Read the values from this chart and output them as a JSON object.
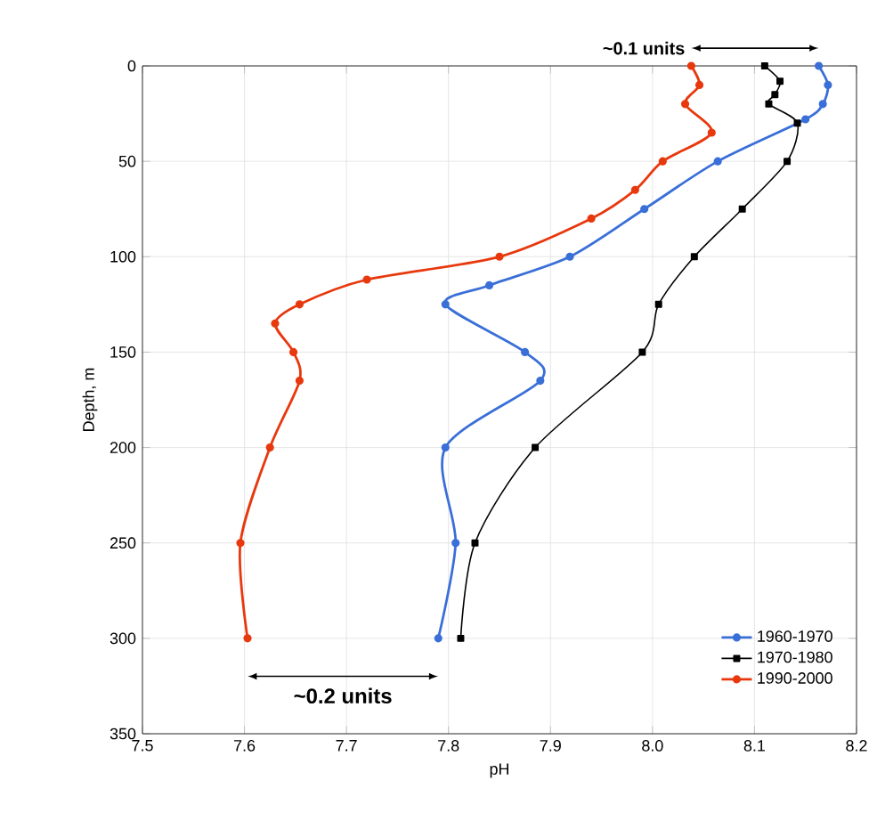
{
  "chart_data": {
    "type": "line",
    "xlabel": "pH",
    "ylabel": "Depth, m",
    "xlim": [
      7.5,
      8.2
    ],
    "xticks": [
      7.5,
      7.6,
      7.7,
      7.8,
      7.9,
      {
        "value": 8.0,
        "label": "8.0"
      },
      8.1,
      8.2
    ],
    "ylim": [
      350,
      0
    ],
    "yticks": [
      0,
      50,
      100,
      150,
      200,
      250,
      300,
      350
    ],
    "grid": true,
    "legend": "bottom right",
    "series": [
      {
        "name": "1960-1970",
        "color": "#3a6fd8",
        "marker": "circle",
        "x": [
          8.163,
          8.172,
          8.167,
          8.15,
          8.064,
          7.992,
          7.919,
          7.84,
          7.797,
          7.875,
          7.89,
          7.797,
          7.807,
          7.79
        ],
        "values": [
          0,
          10,
          20,
          28,
          50,
          75,
          100,
          115,
          125,
          150,
          165,
          200,
          250,
          300
        ]
      },
      {
        "name": "1970-1980",
        "color": "#000000",
        "marker": "square",
        "x": [
          8.11,
          8.125,
          8.12,
          8.114,
          8.142,
          8.132,
          8.088,
          8.041,
          8.006,
          7.99,
          7.885,
          7.826,
          7.812
        ],
        "values": [
          0,
          8,
          15,
          20,
          30,
          50,
          75,
          100,
          125,
          150,
          200,
          250,
          300
        ]
      },
      {
        "name": "1990-2000",
        "color": "#e8380d",
        "marker": "circle",
        "x": [
          8.038,
          8.046,
          8.032,
          8.058,
          8.01,
          7.983,
          7.94,
          7.85,
          7.72,
          7.654,
          7.63,
          7.648,
          7.654,
          7.625,
          7.596,
          7.603
        ],
        "values": [
          0,
          10,
          20,
          35,
          50,
          65,
          80,
          100,
          112,
          125,
          135,
          150,
          165,
          200,
          250,
          300
        ]
      }
    ],
    "annotations": [
      "~0.1 units",
      "~0.2 units"
    ]
  }
}
